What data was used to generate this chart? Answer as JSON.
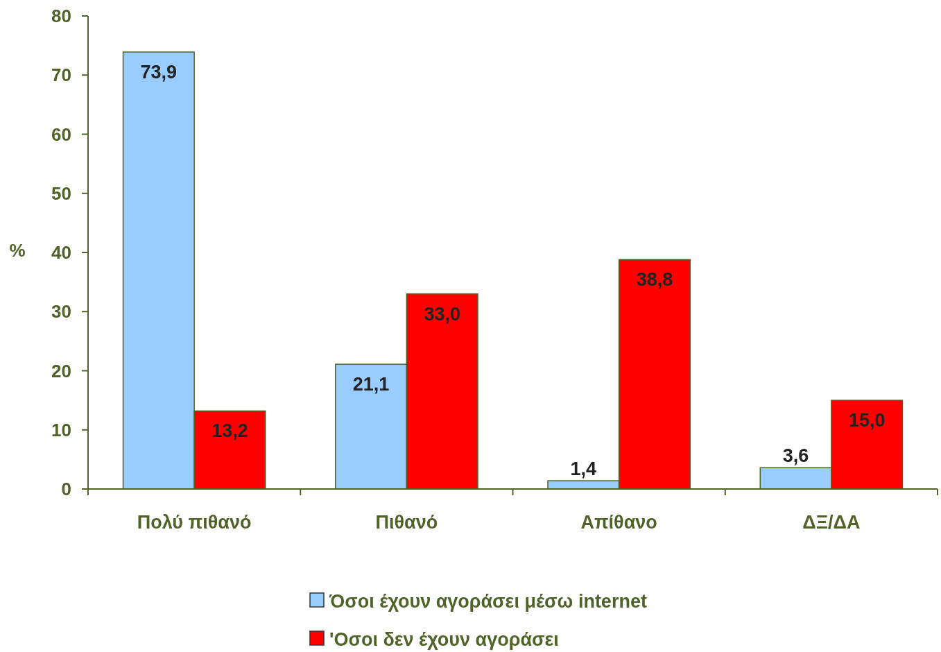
{
  "chart_data": {
    "type": "bar",
    "ylabel": "%",
    "categories": [
      "Πολύ πιθανό",
      "Πιθανό",
      "Απίθανο",
      "ΔΞ/ΔΑ"
    ],
    "series": [
      {
        "name": "Όσοι έχουν αγοράσει μέσω internet",
        "color": "#99ccff",
        "values": [
          73.9,
          21.1,
          1.4,
          3.6
        ],
        "value_labels": [
          "73,9",
          "21,1",
          "1,4",
          "3,6"
        ]
      },
      {
        "name": "'Οσοι δεν έχουν αγοράσει",
        "color": "#ff0000",
        "values": [
          13.2,
          33.0,
          38.8,
          15.0
        ],
        "value_labels": [
          "13,2",
          "33,0",
          "38,8",
          "15,0"
        ]
      }
    ],
    "ylim": [
      0,
      80
    ],
    "yticks": [
      0,
      10,
      20,
      30,
      40,
      50,
      60,
      70,
      80
    ],
    "grid": false,
    "legend": "bottom"
  }
}
